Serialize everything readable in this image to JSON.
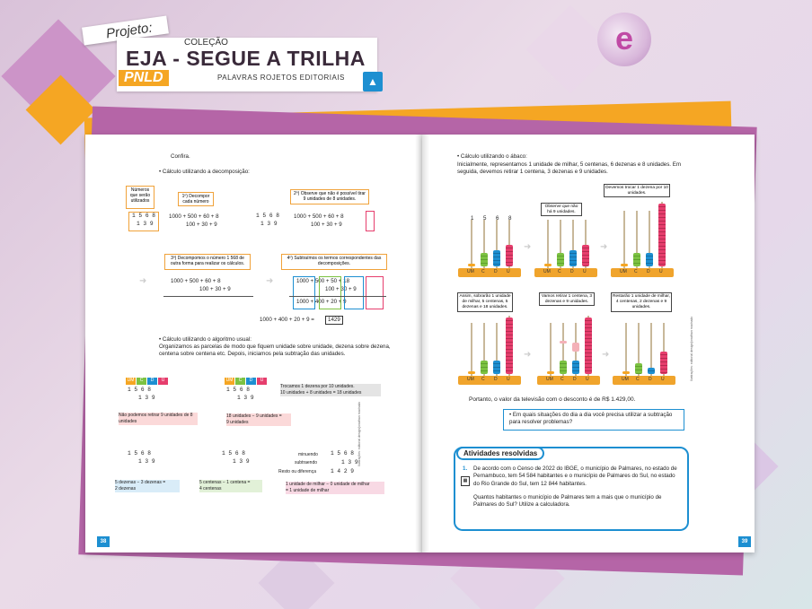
{
  "header": {
    "projeto": "Projeto:",
    "colecao": "COLEÇÃO",
    "title": "EJA - SEGUE A TRILHA",
    "pnld": "PNLD",
    "publisher": "PALAVRAS ROJETOS EDITORIAIS",
    "logo_icon": "palavras-logo-icon",
    "brand_icon": "e-brand-icon"
  },
  "colors": {
    "orange": "#f5a623",
    "purple": "#b565a7",
    "blue": "#1d8fd1",
    "pink": "#e63e6d",
    "green": "#7cc242"
  },
  "left": {
    "confira": "Confira.",
    "decomp_title": "• Cálculo utilizando a decomposição:",
    "box_numeros": "Números que serão utilizados",
    "box_decompor": "1º) Decompor cada número",
    "box_observe": "2º) Observe que não é possível tirar 9 unidades de 8 unidades.",
    "n1": "1 5 6 8",
    "n2": "1 3 9",
    "d1": "1000 + 500 + 60 + 8",
    "d2": "100 + 30 + 9",
    "box_decompomos": "3º) Decompomos o número 1 568 de outra forma para realizar os cálculos.",
    "box_subtraimos": "4º) Subtraímos os termos correspondentes das decomposições.",
    "e1": "1000 + 500 + 60 + 8",
    "e2": "100 + 30 + 9",
    "f1": "1000 + 500 + 50 + 18",
    "f2": "100 + 30 + 9",
    "f3": "1000 + 400 + 20 + 9",
    "result_line": "1000 + 400 + 20 + 9 =",
    "result": "1429",
    "alg_title": "• Cálculo utilizando o algoritmo usual:",
    "alg_text": "Organizamos as parcelas de modo que fiquem unidade sobre unidade, dezena sobre dezena, centena sobre centena etc. Depois, iniciamos pela subtração das unidades.",
    "cols": [
      "UM",
      "C",
      "D",
      "U"
    ],
    "a1_top": "1 5 6 8",
    "a1_bot": "1 3 9",
    "a1_note": "Não podemos retirar 9 unidades de 8 unidades",
    "a2_note1": "Trocamos 1 dezena por 10 unidades.",
    "a2_note2": "10 unidades + 8 unidades = 18 unidades",
    "a2_note3": "18 unidades − 9 unidades =",
    "a2_note4": "9 unidades",
    "a3_note": "5 dezenas − 3 dezenas =",
    "a3_note2": "2 dezenas",
    "a4_note": "5 centenas − 1 centena =",
    "a4_note2": "4 centenas",
    "minuendo": "minuendo",
    "subtraendo": "subtraendo",
    "resto": "Resto ou diferença",
    "a5_res": "1 4 2 9",
    "a5_note": "1 unidade de milhar − 0 unidade de milhar",
    "a5_note2": "= 1 unidade de milhar",
    "side_credit": "Ilustrações: editorial design/jonathan machado",
    "page_num": "38"
  },
  "right": {
    "abaco_title": "• Cálculo utilizando o ábaco:",
    "abaco_text": "Inicialmente, representamos 1 unidade de milhar, 5 centenas, 6 dezenas e 8 unidades. Em seguida, devemos retirar 1 centena, 3 dezenas e 9 unidades.",
    "col_nums": [
      "1",
      "5",
      "6",
      "8"
    ],
    "c1": "Observe que não há 9 unidades.",
    "c2": "Devemos trocar 1 dezena por 10 unidades.",
    "c3": "Assim, sobrarão 1 unidade de milhar, 5 centenas, 5 dezenas e 18 unidades.",
    "c4": "Vamos retirar 1 centena, 3 dezenas e 9 unidades.",
    "c5": "Restarão 1 unidade de milhar, 4 centenas, 2 dezenas e 9 unidades.",
    "base_labels": [
      "UM",
      "C",
      "D",
      "U"
    ],
    "portanto": "Portanto, o valor da televisão com o desconto é de R$ 1.429,00.",
    "question": "• Em quais situações do dia a dia você precisa utilizar a subtração para resolver problemas?",
    "ativ_title": "Atividades resolvidas",
    "ativ_item": "1.",
    "ativ_text": "De acordo com o Censo de 2022 do IBGE, o município de Palmares, no estado de Pernambuco, tem 54 584 habitantes e o município de Palmares do Sul, no estado do Rio Grande do Sul, tem 12 844 habitantes.",
    "ativ_q": "Quantos habitantes o município de Palmares tem a mais que o município de Palmares do Sul? Utilize a calculadora.",
    "side_credit": "Ilustrações: editorial design/jonathan machado",
    "page_num": "39"
  }
}
